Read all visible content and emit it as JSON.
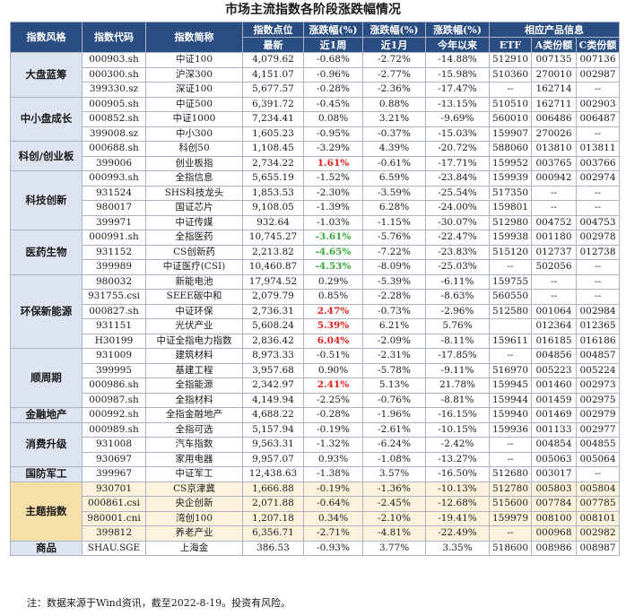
{
  "title": "市场主流指数各阶段涨跌幅情况",
  "header": {
    "style": "指数风格",
    "code": "指数代码",
    "name": "指数简称",
    "point_top": "指数点位",
    "point_bottom": "最新",
    "w_top": "涨跌幅(%)",
    "w_bottom": "近1周",
    "m_top": "涨跌幅(%)",
    "m_bottom": "近1月",
    "y_top": "涨跌幅(%)",
    "y_bottom": "今年以来",
    "products": "相应产品信息",
    "etf": "ETF",
    "a": "A类份额",
    "c": "C类份额"
  },
  "groups": [
    {
      "name": "大盘蓝筹",
      "rows": [
        {
          "code": "000903.sh",
          "name": "中证100",
          "point": "4,079.62",
          "w": "-0.68%",
          "m": "-2.72%",
          "y": "-14.88%",
          "etf": "512910",
          "a": "007135",
          "c": "007136"
        },
        {
          "code": "000300.sh",
          "name": "沪深300",
          "point": "4,151.07",
          "w": "-0.96%",
          "m": "-2.77%",
          "y": "-15.98%",
          "etf": "510360",
          "a": "270010",
          "c": "002987"
        },
        {
          "code": "399330.sz",
          "name": "深证100",
          "point": "5,677.57",
          "w": "-0.28%",
          "m": "-2.36%",
          "y": "-17.47%",
          "etf": "--",
          "a": "162714",
          "c": "--"
        }
      ]
    },
    {
      "name": "中小盘成长",
      "rows": [
        {
          "code": "000905.sh",
          "name": "中证500",
          "point": "6,391.72",
          "w": "-0.45%",
          "m": "0.88%",
          "y": "-13.15%",
          "etf": "510510",
          "a": "162711",
          "c": "002903"
        },
        {
          "code": "000852.sh",
          "name": "中证1000",
          "point": "7,234.41",
          "w": "0.08%",
          "m": "3.21%",
          "y": "-9.69%",
          "etf": "560010",
          "a": "006486",
          "c": "006487"
        },
        {
          "code": "399008.sz",
          "name": "中小300",
          "point": "1,605.23",
          "w": "-0.95%",
          "m": "-0.37%",
          "y": "-15.03%",
          "etf": "159907",
          "a": "270026",
          "c": "--"
        }
      ]
    },
    {
      "name": "科创/创业板",
      "rows": [
        {
          "code": "000688.sh",
          "name": "科创50",
          "point": "1,108.45",
          "w": "-3.29%",
          "m": "4.39%",
          "y": "-20.72%",
          "etf": "588060",
          "a": "013810",
          "c": "013811"
        },
        {
          "code": "399006",
          "name": "创业板指",
          "point": "2,734.22",
          "w": "1.61%",
          "wc": "pos",
          "m": "-0.61%",
          "y": "-17.71%",
          "etf": "159952",
          "a": "003765",
          "c": "003766"
        }
      ]
    },
    {
      "name": "科技创新",
      "rows": [
        {
          "code": "000993.sh",
          "name": "全指信息",
          "point": "5,655.19",
          "w": "-1.52%",
          "m": "6.59%",
          "y": "-23.84%",
          "etf": "159939",
          "a": "000942",
          "c": "002974"
        },
        {
          "code": "931524",
          "name": "SHS科技龙头",
          "point": "1,853.53",
          "w": "-2.30%",
          "m": "-3.59%",
          "y": "-25.54%",
          "etf": "517350",
          "a": "--",
          "c": "--"
        },
        {
          "code": "980017",
          "name": "国证芯片",
          "point": "9,108.05",
          "w": "-1.39%",
          "m": "6.28%",
          "y": "-24.00%",
          "etf": "159801",
          "a": "--",
          "c": "--"
        },
        {
          "code": "399971",
          "name": "中证传媒",
          "point": "932.64",
          "w": "-1.03%",
          "m": "-1.15%",
          "y": "-30.07%",
          "etf": "512980",
          "a": "004752",
          "c": "004753"
        }
      ]
    },
    {
      "name": "医药生物",
      "rows": [
        {
          "code": "000991.sh",
          "name": "全指医药",
          "point": "10,745.27",
          "w": "-3.61%",
          "wc": "neg",
          "m": "-5.76%",
          "y": "-22.47%",
          "etf": "159938",
          "a": "001180",
          "c": "002978"
        },
        {
          "code": "931152",
          "name": "CS创新药",
          "point": "2,213.82",
          "w": "-4.65%",
          "wc": "neg",
          "m": "-7.22%",
          "y": "-23.83%",
          "etf": "515120",
          "a": "012737",
          "c": "012738"
        },
        {
          "code": "399989",
          "name": "中证医疗(CSI)",
          "point": "10,460.87",
          "w": "-4.53%",
          "wc": "neg",
          "m": "-8.09%",
          "y": "-25.03%",
          "etf": "--",
          "a": "502056",
          "c": "--"
        }
      ]
    },
    {
      "name": "环保新能源",
      "rows": [
        {
          "code": "980032",
          "name": "新能电池",
          "point": "17,974.52",
          "w": "0.29%",
          "m": "-5.39%",
          "y": "-6.11%",
          "etf": "159755",
          "a": "--",
          "c": "--"
        },
        {
          "code": "931755.csi",
          "name": "SEEE碳中和",
          "point": "2,079.79",
          "w": "0.85%",
          "m": "-2.28%",
          "y": "-8.63%",
          "etf": "560550",
          "a": "--",
          "c": "--"
        },
        {
          "code": "000827.sh",
          "name": "中证环保",
          "point": "2,736.31",
          "w": "2.47%",
          "wc": "pos",
          "m": "-0.73%",
          "y": "-2.96%",
          "etf": "512580",
          "a": "001064",
          "c": "002984"
        },
        {
          "code": "931151",
          "name": "光伏产业",
          "point": "5,608.24",
          "w": "5.39%",
          "wc": "pos",
          "m": "6.21%",
          "y": "5.76%",
          "etf": "",
          "a": "012364",
          "c": "012365"
        },
        {
          "code": "H30199",
          "name": "中证全指电力指数",
          "point": "2,836.42",
          "w": "6.04%",
          "wc": "pos",
          "m": "-2.09%",
          "y": "-8.11%",
          "etf": "159611",
          "a": "016185",
          "c": "016186"
        }
      ]
    },
    {
      "name": "顺周期",
      "rows": [
        {
          "code": "931009",
          "name": "建筑材料",
          "point": "8,973.33",
          "w": "-0.51%",
          "m": "-2.31%",
          "y": "-17.85%",
          "etf": "--",
          "a": "004856",
          "c": "004857"
        },
        {
          "code": "399995",
          "name": "基建工程",
          "point": "3,957.68",
          "w": "0.90%",
          "m": "-5.78%",
          "y": "-9.11%",
          "etf": "516970",
          "a": "005223",
          "c": "005224"
        },
        {
          "code": "000986.sh",
          "name": "全指能源",
          "point": "2,342.97",
          "w": "2.41%",
          "wc": "pos",
          "m": "5.13%",
          "y": "21.78%",
          "etf": "159945",
          "a": "001460",
          "c": "002973"
        },
        {
          "code": "000987.sh",
          "name": "全指材料",
          "point": "4,149.94",
          "w": "-2.25%",
          "m": "-0.76%",
          "y": "-8.81%",
          "etf": "159944",
          "a": "001459",
          "c": "002975"
        }
      ]
    },
    {
      "name": "金融地产",
      "rows": [
        {
          "code": "000992.sh",
          "name": "全指金融地产",
          "point": "4,688.22",
          "w": "-0.28%",
          "m": "-1.96%",
          "y": "-16.15%",
          "etf": "159940",
          "a": "001469",
          "c": "002979"
        }
      ]
    },
    {
      "name": "消费升级",
      "rows": [
        {
          "code": "000989.sh",
          "name": "全指可选",
          "point": "5,157.94",
          "w": "-0.19%",
          "m": "-2.61%",
          "y": "-10.15%",
          "etf": "159936",
          "a": "001133",
          "c": "002977"
        },
        {
          "code": "931008",
          "name": "汽车指数",
          "point": "9,563.31",
          "w": "-1.32%",
          "m": "-6.24%",
          "y": "-2.42%",
          "etf": "--",
          "a": "004854",
          "c": "004855"
        },
        {
          "code": "930697",
          "name": "家用电器",
          "point": "9,957.07",
          "w": "0.93%",
          "m": "-1.08%",
          "y": "-13.27%",
          "etf": "--",
          "a": "005063",
          "c": "005064"
        }
      ]
    },
    {
      "name": "国防军工",
      "rows": [
        {
          "code": "399967",
          "name": "中证军工",
          "point": "12,438.63",
          "w": "-1.38%",
          "m": "3.57%",
          "y": "-16.50%",
          "etf": "512680",
          "a": "003017",
          "c": "--"
        }
      ]
    },
    {
      "name": "主题指数",
      "theme": true,
      "rows": [
        {
          "code": "930701",
          "name": "CS京津冀",
          "point": "1,666.88",
          "w": "-0.19%",
          "m": "-1.36%",
          "y": "-10.13%",
          "etf": "512780",
          "a": "005803",
          "c": "005804"
        },
        {
          "code": "000861.csi",
          "name": "央企创新",
          "point": "2,071.88",
          "w": "-0.64%",
          "m": "-2.45%",
          "y": "-12.68%",
          "etf": "515600",
          "a": "007784",
          "c": "007785"
        },
        {
          "code": "980001.cni",
          "name": "湾创100",
          "point": "1,207.18",
          "w": "0.34%",
          "m": "-2.10%",
          "y": "-19.41%",
          "etf": "159979",
          "a": "008100",
          "c": "008101"
        },
        {
          "code": "399812",
          "name": "养老产业",
          "point": "6,356.71",
          "w": "-2.71%",
          "m": "-4.81%",
          "y": "-22.49%",
          "etf": "--",
          "a": "000968",
          "c": "002982"
        }
      ]
    },
    {
      "name": "商品",
      "rows": [
        {
          "code": "SHAU.SGE",
          "name": "上海金",
          "point": "386.53",
          "w": "-0.93%",
          "m": "3.77%",
          "y": "3.35%",
          "etf": "518600",
          "a": "008986",
          "c": "008987"
        }
      ]
    }
  ],
  "note": "注：数据来源于Wind资讯，截至2022-8-19。投资有风险。"
}
